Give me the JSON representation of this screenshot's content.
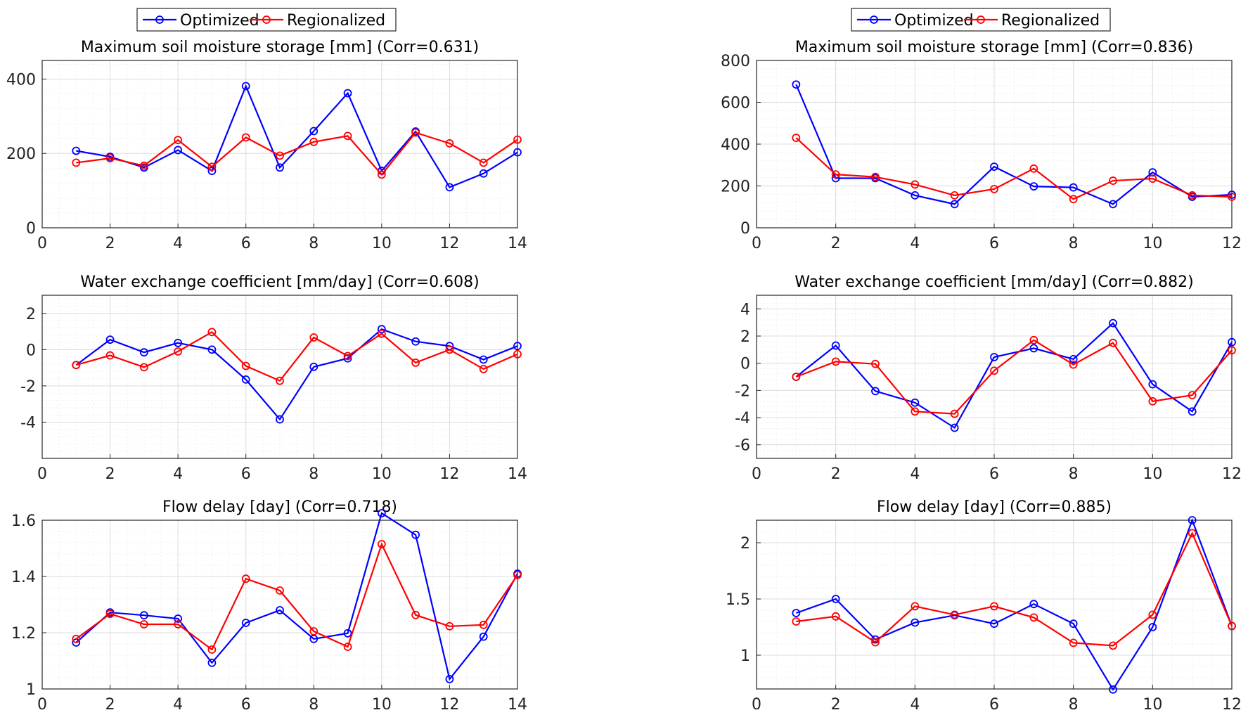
{
  "legend": {
    "items": [
      "Optimized",
      "Regionalized"
    ]
  },
  "colors": {
    "optimized": "#0000ff",
    "regionalized": "#ff0000",
    "grid_major": "#dcdcdc",
    "grid_minor": "#efefef",
    "axis": "#262626"
  },
  "chart_data": [
    {
      "type": "line",
      "title": "Maximum soil moisture storage [mm] (Corr=0.631)",
      "xlim": [
        0,
        14
      ],
      "ylim": [
        0,
        450
      ],
      "xticks": [
        0,
        2,
        4,
        6,
        8,
        10,
        12,
        14
      ],
      "yticks": [
        0,
        200,
        400
      ],
      "grid": true,
      "legend": "top-center",
      "x": [
        1,
        2,
        3,
        4,
        5,
        6,
        7,
        8,
        9,
        10,
        11,
        12,
        13,
        14
      ],
      "series": [
        {
          "name": "Optimized",
          "values": [
            207,
            191,
            162,
            209,
            153,
            381,
            162,
            260,
            362,
            153,
            259,
            109,
            146,
            203
          ]
        },
        {
          "name": "Regionalized",
          "values": [
            175,
            187,
            167,
            236,
            164,
            243,
            194,
            231,
            247,
            143,
            256,
            227,
            175,
            237
          ]
        }
      ]
    },
    {
      "type": "line",
      "title": "Water exchange coefficient [mm/day] (Corr=0.608)",
      "xlim": [
        0,
        14
      ],
      "ylim": [
        -6,
        3
      ],
      "xticks": [
        0,
        2,
        4,
        6,
        8,
        10,
        12,
        14
      ],
      "yticks": [
        -4,
        -2,
        0,
        2
      ],
      "grid": true,
      "x": [
        1,
        2,
        3,
        4,
        5,
        6,
        7,
        8,
        9,
        10,
        11,
        12,
        13,
        14
      ],
      "series": [
        {
          "name": "Optimized",
          "values": [
            -0.85,
            0.55,
            -0.15,
            0.37,
            0.0,
            -1.65,
            -3.85,
            -0.95,
            -0.48,
            1.13,
            0.45,
            0.2,
            -0.55,
            0.2
          ]
        },
        {
          "name": "Regionalized",
          "values": [
            -0.85,
            -0.32,
            -0.97,
            -0.1,
            0.97,
            -0.9,
            -1.72,
            0.67,
            -0.35,
            0.88,
            -0.72,
            0.0,
            -1.07,
            -0.25
          ]
        }
      ]
    },
    {
      "type": "line",
      "title": "Flow delay [day] (Corr=0.718)",
      "xlim": [
        0,
        14
      ],
      "ylim": [
        1,
        1.6
      ],
      "xticks": [
        0,
        2,
        4,
        6,
        8,
        10,
        12,
        14
      ],
      "yticks": [
        1,
        1.2,
        1.4,
        1.6
      ],
      "grid": true,
      "x": [
        1,
        2,
        3,
        4,
        5,
        6,
        7,
        8,
        9,
        10,
        11,
        12,
        13,
        14
      ],
      "series": [
        {
          "name": "Optimized",
          "values": [
            1.165,
            1.272,
            1.262,
            1.25,
            1.093,
            1.235,
            1.28,
            1.178,
            1.198,
            1.625,
            1.548,
            1.035,
            1.186,
            1.41
          ]
        },
        {
          "name": "Regionalized",
          "values": [
            1.178,
            1.267,
            1.23,
            1.23,
            1.14,
            1.392,
            1.35,
            1.205,
            1.15,
            1.515,
            1.263,
            1.223,
            1.228,
            1.405
          ]
        }
      ]
    },
    {
      "type": "line",
      "title": "Maximum soil moisture storage [mm] (Corr=0.836)",
      "xlim": [
        0,
        12
      ],
      "ylim": [
        0,
        800
      ],
      "xticks": [
        0,
        2,
        4,
        6,
        8,
        10,
        12
      ],
      "yticks": [
        0,
        200,
        400,
        600,
        800
      ],
      "grid": true,
      "legend": "top-center",
      "x": [
        1,
        2,
        3,
        4,
        5,
        6,
        7,
        8,
        9,
        10,
        11,
        12
      ],
      "series": [
        {
          "name": "Optimized",
          "values": [
            685,
            237,
            237,
            155,
            113,
            292,
            198,
            193,
            113,
            265,
            148,
            158
          ]
        },
        {
          "name": "Regionalized",
          "values": [
            430,
            255,
            243,
            207,
            155,
            185,
            283,
            137,
            225,
            235,
            155,
            148
          ]
        }
      ]
    },
    {
      "type": "line",
      "title": "Water exchange coefficient [mm/day] (Corr=0.882)",
      "xlim": [
        0,
        12
      ],
      "ylim": [
        -7,
        5
      ],
      "xticks": [
        0,
        2,
        4,
        6,
        8,
        10,
        12
      ],
      "yticks": [
        -6,
        -4,
        -2,
        0,
        2,
        4
      ],
      "grid": true,
      "x": [
        1,
        2,
        3,
        4,
        5,
        6,
        7,
        8,
        9,
        10,
        11,
        12
      ],
      "series": [
        {
          "name": "Optimized",
          "values": [
            -1.0,
            1.3,
            -2.05,
            -2.9,
            -4.75,
            0.45,
            1.1,
            0.3,
            2.95,
            -1.55,
            -3.55,
            1.55
          ]
        },
        {
          "name": "Regionalized",
          "values": [
            -1.0,
            0.12,
            -0.05,
            -3.55,
            -3.72,
            -0.55,
            1.7,
            -0.1,
            1.5,
            -2.8,
            -2.35,
            0.95
          ]
        }
      ]
    },
    {
      "type": "line",
      "title": "Flow delay [day] (Corr=0.885)",
      "xlim": [
        0,
        12
      ],
      "ylim": [
        0.7,
        2.2
      ],
      "xticks": [
        0,
        2,
        4,
        6,
        8,
        10,
        12
      ],
      "yticks": [
        1,
        1.5,
        2
      ],
      "grid": true,
      "x": [
        1,
        2,
        3,
        4,
        5,
        6,
        7,
        8,
        9,
        10,
        11,
        12
      ],
      "series": [
        {
          "name": "Optimized",
          "values": [
            1.375,
            1.5,
            1.14,
            1.29,
            1.355,
            1.28,
            1.455,
            1.28,
            0.695,
            1.25,
            2.2,
            1.26
          ]
        },
        {
          "name": "Regionalized",
          "values": [
            1.3,
            1.345,
            1.115,
            1.435,
            1.36,
            1.435,
            1.335,
            1.11,
            1.085,
            1.36,
            2.085,
            1.26
          ]
        }
      ]
    }
  ]
}
